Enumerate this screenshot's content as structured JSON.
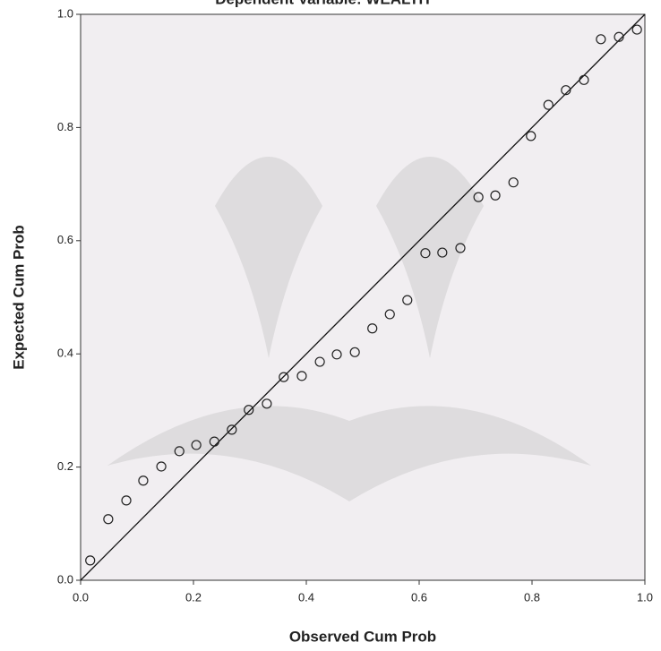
{
  "chart_data": {
    "type": "scatter",
    "title": "Dependent Variable: WEALTH",
    "xlabel": "Observed Cum Prob",
    "ylabel": "Expected Cum Prob",
    "xlim": [
      0,
      1
    ],
    "ylim": [
      0,
      1
    ],
    "xticks": [
      {
        "value": 0,
        "label": "0.0"
      },
      {
        "value": 0.2,
        "label": "0.2"
      },
      {
        "value": 0.4,
        "label": "0.4"
      },
      {
        "value": 0.6,
        "label": "0.6"
      },
      {
        "value": 0.8,
        "label": "0.8"
      },
      {
        "value": 1,
        "label": "1.0"
      }
    ],
    "yticks": [
      {
        "value": 0,
        "label": "0.0"
      },
      {
        "value": 0.2,
        "label": "0.2"
      },
      {
        "value": 0.4,
        "label": "0.4"
      },
      {
        "value": 0.6,
        "label": "0.6"
      },
      {
        "value": 0.8,
        "label": "0.8"
      },
      {
        "value": 1,
        "label": "1.0"
      }
    ],
    "color": "#222222",
    "x": [
      0.017,
      0.049,
      0.081,
      0.111,
      0.143,
      0.175,
      0.205,
      0.237,
      0.268,
      0.298,
      0.33,
      0.36,
      0.392,
      0.424,
      0.454,
      0.486,
      0.517,
      0.548,
      0.579,
      0.611,
      0.641,
      0.673,
      0.705,
      0.735,
      0.767,
      0.798,
      0.829,
      0.86,
      0.892,
      0.922,
      0.954,
      0.986
    ],
    "values": [
      0.035,
      0.108,
      0.141,
      0.176,
      0.201,
      0.228,
      0.239,
      0.245,
      0.266,
      0.301,
      0.312,
      0.359,
      0.361,
      0.386,
      0.399,
      0.403,
      0.445,
      0.47,
      0.495,
      0.578,
      0.579,
      0.587,
      0.677,
      0.68,
      0.703,
      0.785,
      0.84,
      0.866,
      0.884,
      0.956,
      0.96,
      0.973
    ]
  }
}
